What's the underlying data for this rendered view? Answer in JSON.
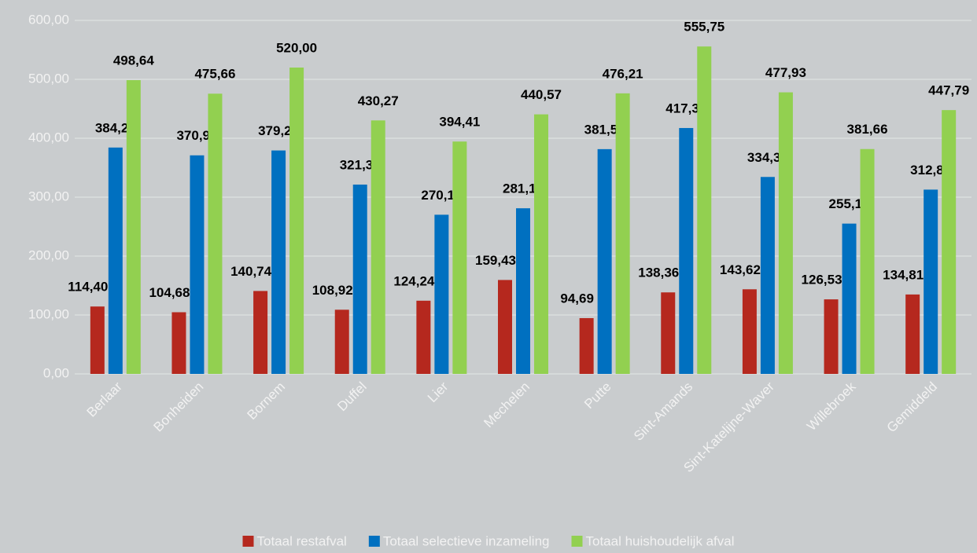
{
  "chart_data": {
    "type": "bar",
    "categories": [
      "Berlaar",
      "Bonheiden",
      "Bornem",
      "Duffel",
      "Lier",
      "Mechelen",
      "Putte",
      "Sint-Amands",
      "Sint-Katelijne-Waver",
      "Willebroek",
      "Gemiddeld"
    ],
    "series": [
      {
        "name": "Totaal restafval",
        "color": "#b5281e",
        "values": [
          114.4,
          104.68,
          140.74,
          108.92,
          124.24,
          159.43,
          94.69,
          138.36,
          143.62,
          126.53,
          134.81
        ],
        "value_labels": [
          "114,40",
          "104,68",
          "140,74",
          "108,92",
          "124,24",
          "159,43",
          "94,69",
          "138,36",
          "143,62",
          "126,53",
          "134,81"
        ]
      },
      {
        "name": "Totaal selectieve inzameling",
        "color": "#0070c0",
        "values": [
          384.24,
          370.98,
          379.26,
          321.35,
          270.17,
          281.14,
          381.51,
          417.38,
          334.31,
          255.13,
          312.8
        ],
        "value_labels": [
          "384,24",
          "370,98",
          "379,26",
          "321,35",
          "270,17",
          "281,14",
          "381,51",
          "417,38",
          "334,31",
          "255,13",
          "312,80"
        ]
      },
      {
        "name": "Totaal huishoudelijk afval",
        "color": "#92d050",
        "values": [
          498.64,
          475.66,
          520.0,
          430.27,
          394.41,
          440.57,
          476.21,
          555.75,
          477.93,
          381.66,
          447.79
        ],
        "value_labels": [
          "498,64",
          "475,66",
          "520,00",
          "430,27",
          "394,41",
          "440,57",
          "476,21",
          "555,75",
          "477,93",
          "381,66",
          "447,79"
        ]
      }
    ],
    "ylim": [
      0,
      600
    ],
    "yticks": [
      {
        "value": 0,
        "label": "0,00"
      },
      {
        "value": 100,
        "label": "100,00"
      },
      {
        "value": 200,
        "label": "200,00"
      },
      {
        "value": 300,
        "label": "300,00"
      },
      {
        "value": 400,
        "label": "400,00"
      },
      {
        "value": 500,
        "label": "500,00"
      },
      {
        "value": 600,
        "label": "600,00"
      }
    ],
    "grid": true,
    "legend": "bottom"
  }
}
